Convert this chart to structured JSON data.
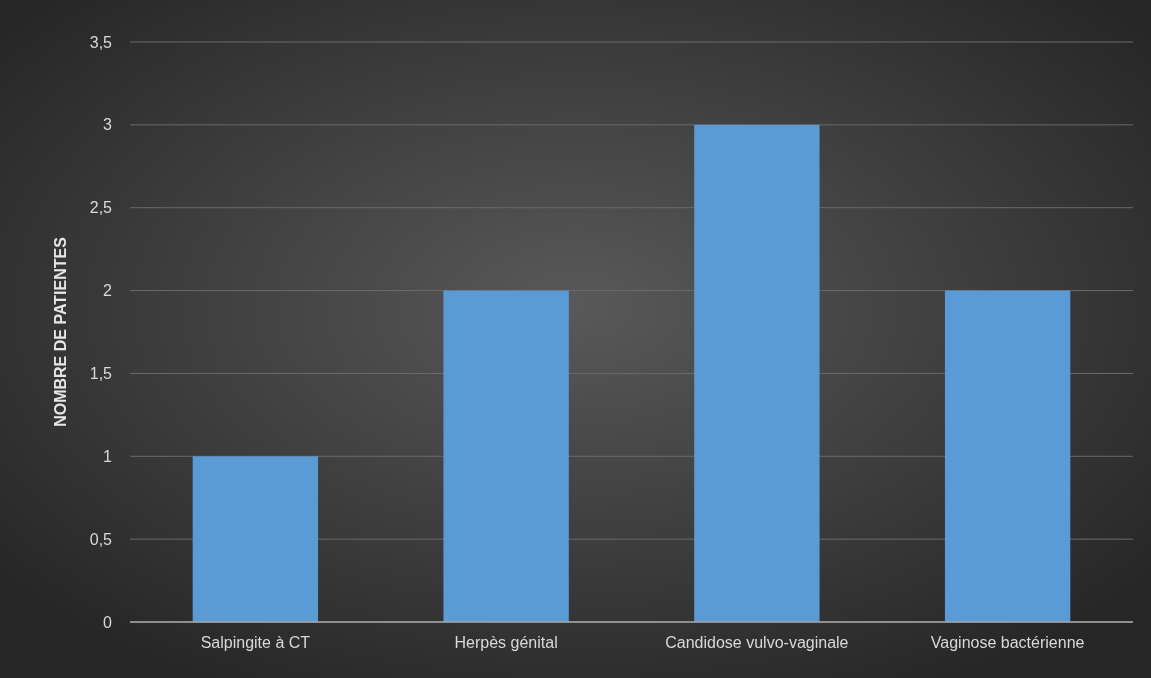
{
  "chart_data": {
    "type": "bar",
    "ylabel": "NOMBRE DE PATIENTES",
    "categories": [
      "Salpingite à CT",
      "Herpès génital",
      "Candidose vulvo-vaginale",
      "Vaginose bactérienne"
    ],
    "values": [
      1,
      2,
      3,
      2
    ],
    "color": "#5b9bd5",
    "ylim": [
      0,
      3.5
    ],
    "yticks": [
      0,
      {
        "value": 0.5,
        "label": "0,5"
      },
      1,
      {
        "value": 1.5,
        "label": "1,5"
      },
      2,
      {
        "value": 2.5,
        "label": "2,5"
      },
      3,
      {
        "value": 3.5,
        "label": "3,5"
      }
    ],
    "grid": "y"
  }
}
